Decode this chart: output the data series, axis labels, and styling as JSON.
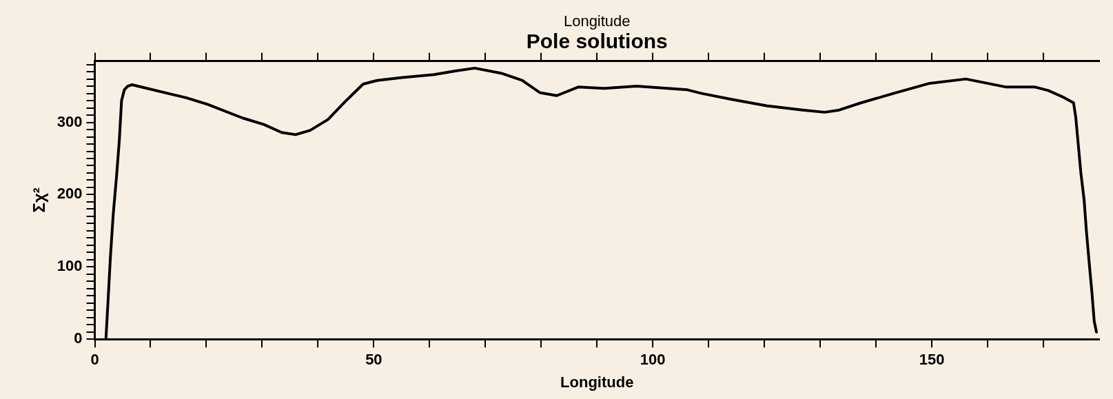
{
  "chart_data": {
    "type": "line",
    "title": "Pole solutions",
    "xlabel": "Longitude",
    "x2label": "Longitude",
    "ylabel": "Σχ²",
    "grid": false,
    "legend": false,
    "marker": "none",
    "line_style": "solid",
    "xlim": [
      0,
      180
    ],
    "ylim": [
      0,
      385
    ],
    "xticks": [
      0,
      {
        "value": 10,
        "label": null
      },
      {
        "value": 20,
        "label": null
      },
      {
        "value": 30,
        "label": null
      },
      {
        "value": 40,
        "label": null
      },
      50,
      {
        "value": 60,
        "label": null
      },
      {
        "value": 70,
        "label": null
      },
      {
        "value": 80,
        "label": null
      },
      {
        "value": 90,
        "label": null
      },
      100,
      {
        "value": 110,
        "label": null
      },
      {
        "value": 120,
        "label": null
      },
      {
        "value": 130,
        "label": null
      },
      {
        "value": 140,
        "label": null
      },
      150,
      {
        "value": 160,
        "label": null
      },
      {
        "value": 170,
        "label": null
      }
    ],
    "yticks": [
      0,
      {
        "value": 10,
        "label": null
      },
      {
        "value": 20,
        "label": null
      },
      {
        "value": 30,
        "label": null
      },
      {
        "value": 40,
        "label": null
      },
      {
        "value": 50,
        "label": null
      },
      {
        "value": 60,
        "label": null
      },
      {
        "value": 70,
        "label": null
      },
      {
        "value": 80,
        "label": null
      },
      {
        "value": 90,
        "label": null
      },
      100,
      {
        "value": 110,
        "label": null
      },
      {
        "value": 120,
        "label": null
      },
      {
        "value": 130,
        "label": null
      },
      {
        "value": 140,
        "label": null
      },
      {
        "value": 150,
        "label": null
      },
      {
        "value": 160,
        "label": null
      },
      {
        "value": 170,
        "label": null
      },
      {
        "value": 180,
        "label": null
      },
      {
        "value": 190,
        "label": null
      },
      200,
      {
        "value": 210,
        "label": null
      },
      {
        "value": 220,
        "label": null
      },
      {
        "value": 230,
        "label": null
      },
      {
        "value": 240,
        "label": null
      },
      {
        "value": 250,
        "label": null
      },
      {
        "value": 260,
        "label": null
      },
      {
        "value": 270,
        "label": null
      },
      {
        "value": 280,
        "label": null
      },
      {
        "value": 290,
        "label": null
      },
      300,
      {
        "value": 310,
        "label": null
      },
      {
        "value": 320,
        "label": null
      },
      {
        "value": 330,
        "label": null
      },
      {
        "value": 340,
        "label": null
      },
      {
        "value": 350,
        "label": null
      },
      {
        "value": 360,
        "label": null
      },
      {
        "value": 370,
        "label": null
      },
      {
        "value": 380,
        "label": null
      }
    ],
    "x": [
      2.0,
      2.3,
      2.8,
      3.3,
      3.9,
      4.4,
      4.8,
      5.3,
      5.9,
      6.7,
      16.4,
      20.2,
      26.5,
      30.3,
      33.5,
      36,
      38.6,
      41.8,
      44.9,
      48.1,
      50.6,
      55.1,
      60.8,
      64.6,
      68.1,
      72.8,
      76.6,
      79.8,
      82.8,
      86.7,
      91.3,
      97.1,
      101,
      106.2,
      108.8,
      114,
      120.4,
      126.9,
      130.8,
      133.4,
      137.3,
      143.1,
      149.6,
      156.1,
      163.2,
      168.4,
      170.9,
      173.5,
      175.4,
      175.8,
      176.2,
      176.7,
      177.3,
      177.7,
      178.2,
      178.7,
      179.1,
      179.5
    ],
    "series": [
      {
        "color": "#000000",
        "values": [
          0,
          42,
          113,
          172,
          225,
          275,
          330,
          345,
          350,
          352,
          334,
          325,
          306,
          297,
          286,
          283,
          289,
          304,
          329,
          353,
          358,
          362,
          366,
          371,
          375,
          368,
          358,
          341,
          337,
          349,
          347,
          350,
          348,
          345,
          340,
          332,
          323,
          317,
          314,
          317,
          327,
          340,
          354,
          360,
          349,
          349,
          344,
          335,
          327,
          307,
          273,
          231,
          192,
          150,
          106,
          64,
          25,
          10
        ]
      }
    ]
  }
}
